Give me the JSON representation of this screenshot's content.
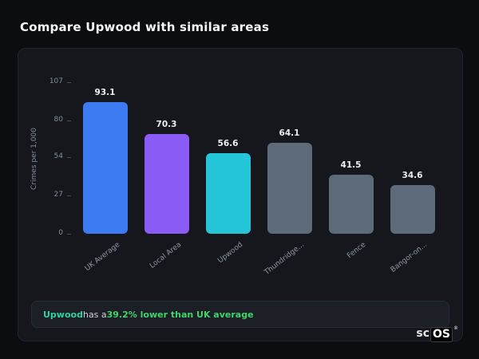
{
  "page": {
    "title": "Compare Upwood with similar areas"
  },
  "chart_data": {
    "type": "bar",
    "categories": [
      "UK Average",
      "Local Area",
      "Upwood",
      "Thundridge...",
      "Fence",
      "Bangor-on..."
    ],
    "values": [
      93.1,
      70.3,
      56.6,
      64.1,
      41.5,
      34.6
    ],
    "value_labels": [
      "93.1",
      "70.3",
      "56.6",
      "64.1",
      "41.5",
      "34.6"
    ],
    "bar_colors": [
      "#3d7bf2",
      "#8a5cf5",
      "#26c6da",
      "#5d6a7a",
      "#5d6a7a",
      "#5d6a7a"
    ],
    "title": "",
    "xlabel": "",
    "ylabel": "Crimes per 1,000",
    "yticks": [
      0,
      27,
      54,
      80,
      107
    ],
    "ylim": [
      0,
      107
    ],
    "grid": false,
    "legend": false
  },
  "note": {
    "area": "Upwood",
    "middle": " has a ",
    "highlight": "39.2% lower than UK average"
  },
  "logo": {
    "prefix": "sc",
    "suffix": "OS",
    "registered": "®"
  },
  "colors": {
    "background": "#0c0d10",
    "card": "#16171c",
    "note_area": "#2fd49c",
    "note_highlight": "#41d46a"
  }
}
